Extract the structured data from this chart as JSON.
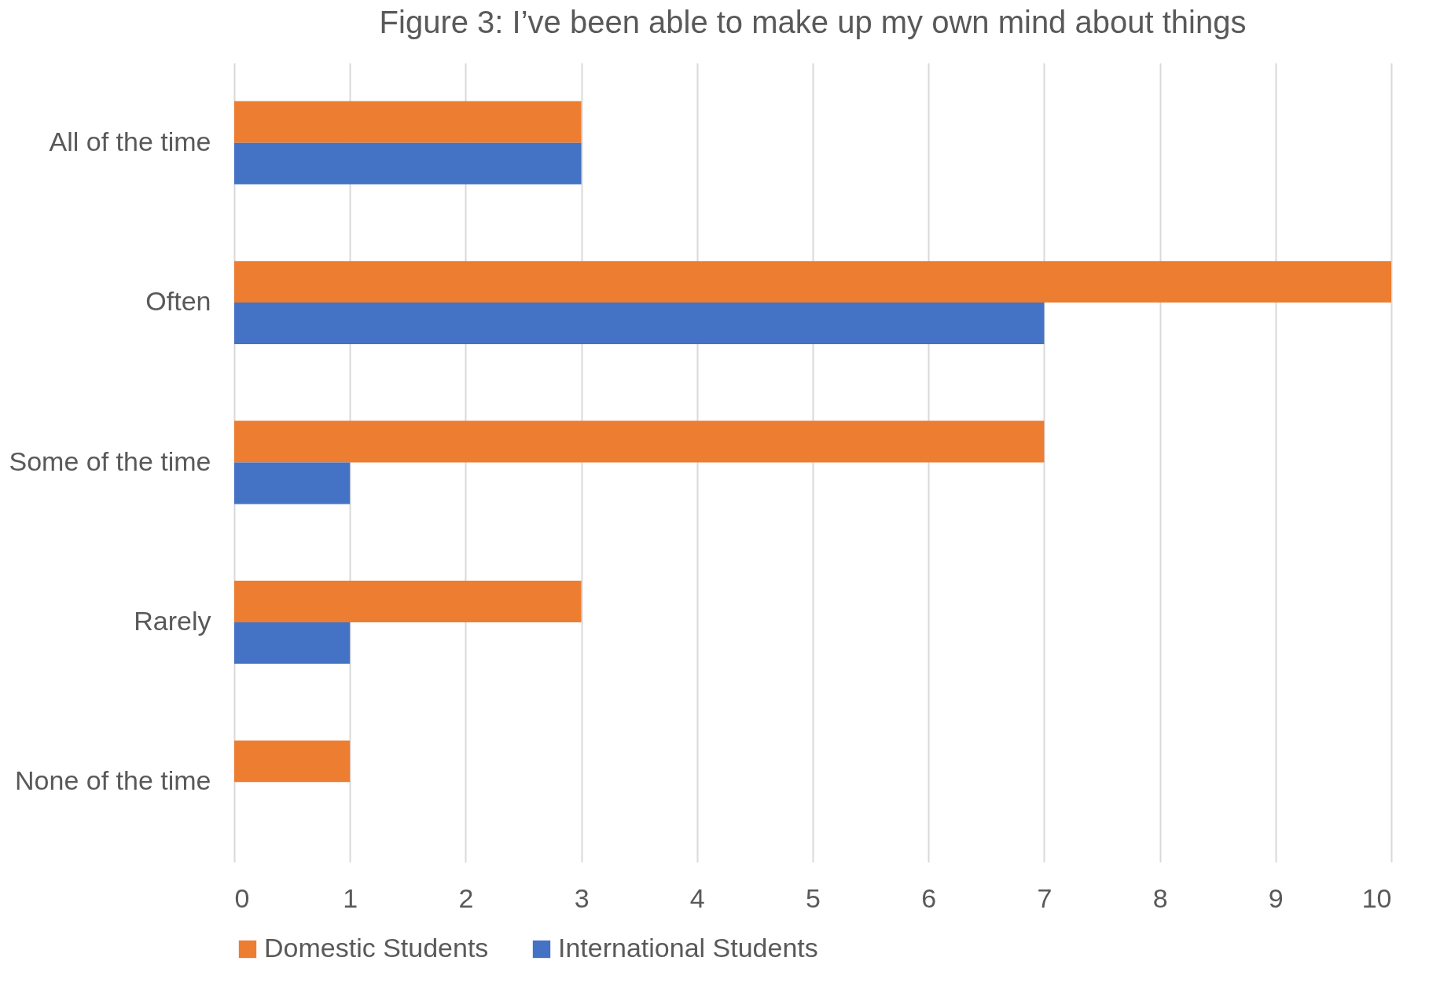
{
  "chart_data": {
    "type": "bar",
    "orientation": "horizontal",
    "title": "Figure 3: I’ve been able to make up my own mind about things",
    "categories": [
      "All of the time",
      "Often",
      "Some of the time",
      "Rarely",
      "None of the time"
    ],
    "series": [
      {
        "name": "Domestic Students",
        "color": "#ed7d31",
        "values": [
          3,
          10,
          7,
          3,
          1
        ]
      },
      {
        "name": "International Students",
        "color": "#4472c4",
        "values": [
          3,
          7,
          1,
          1,
          0
        ]
      }
    ],
    "xlim": [
      0,
      10
    ],
    "xticks": [
      0,
      1,
      2,
      3,
      4,
      5,
      6,
      7,
      8,
      9,
      10
    ],
    "grid": "x",
    "legend": "bottom"
  }
}
